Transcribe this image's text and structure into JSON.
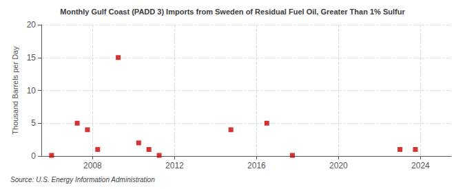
{
  "chart_data": {
    "type": "scatter",
    "title": "Monthly Gulf Coast (PADD 3) Imports from Sweden of Residual Fuel Oil, Greater Than 1% Sulfur",
    "ylabel": "Thousand Barrels per Day",
    "annotations": [
      "Source: U.S. Energy Information Administration"
    ],
    "x": [
      2006.0,
      2007.25,
      2007.75,
      2008.25,
      2009.25,
      2010.25,
      2010.75,
      2011.25,
      2014.75,
      2016.5,
      2017.75,
      2023.0,
      2023.75
    ],
    "values": [
      0.1,
      5.0,
      4.0,
      1.0,
      15.0,
      2.0,
      1.0,
      0.1,
      4.0,
      5.0,
      0.1,
      1.0,
      1.0
    ],
    "color": "#cc0000",
    "marker": "square",
    "xlim": [
      2005.5,
      2025.5
    ],
    "xticks": [
      2008,
      2012,
      2016,
      2020,
      2024
    ],
    "ylim": [
      0,
      20
    ],
    "yticks": [
      0,
      5,
      10,
      15,
      20
    ],
    "grid": true
  }
}
